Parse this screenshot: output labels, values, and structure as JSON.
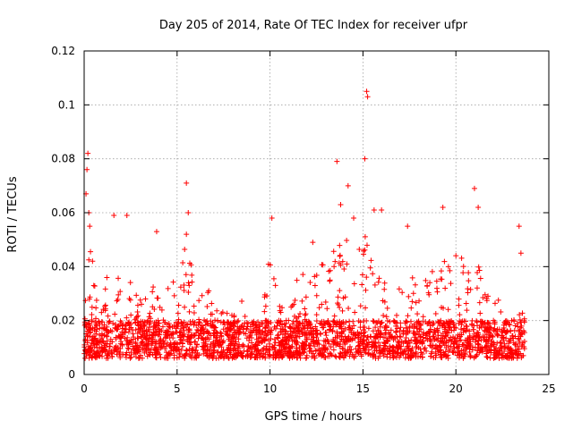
{
  "chart_data": {
    "type": "scatter",
    "title": "Day 205 of 2014, Rate Of TEC Index for receiver ufpr",
    "xlabel": "GPS time / hours",
    "ylabel": "ROTI / TECUs",
    "xlim": [
      0,
      25
    ],
    "ylim": [
      0,
      0.12
    ],
    "x_ticks": [
      0,
      5,
      10,
      15,
      20,
      25
    ],
    "x_tick_labels": [
      "0",
      "5",
      "10",
      "15",
      "20",
      "25"
    ],
    "y_ticks": [
      0,
      0.02,
      0.04,
      0.06,
      0.08,
      0.1,
      0.12
    ],
    "y_tick_labels": [
      "0",
      "0.02",
      "0.04",
      "0.06",
      "0.08",
      "0.1",
      "0.12"
    ],
    "grid": true,
    "marker": "+",
    "series": [
      {
        "name": "ROTI",
        "color": "#ff0000",
        "envelope_hours": [
          0,
          0.3,
          0.6,
          1,
          1.5,
          2,
          2.5,
          3,
          3.5,
          4,
          4.5,
          5,
          5.5,
          6,
          6.5,
          7,
          7.5,
          8,
          8.5,
          9,
          9.5,
          10,
          10.5,
          11,
          11.5,
          12,
          12.5,
          13,
          13.5,
          14,
          14.5,
          15,
          15.5,
          16,
          16.5,
          17,
          17.5,
          18,
          18.5,
          19,
          19.5,
          20,
          20.5,
          21,
          21.5,
          22,
          22.5,
          23,
          23.7
        ],
        "envelope_upper": [
          0.03,
          0.05,
          0.035,
          0.03,
          0.05,
          0.035,
          0.04,
          0.028,
          0.04,
          0.045,
          0.04,
          0.04,
          0.05,
          0.035,
          0.038,
          0.025,
          0.024,
          0.022,
          0.028,
          0.02,
          0.022,
          0.045,
          0.03,
          0.03,
          0.04,
          0.035,
          0.045,
          0.045,
          0.055,
          0.05,
          0.05,
          0.055,
          0.045,
          0.04,
          0.03,
          0.035,
          0.035,
          0.04,
          0.045,
          0.042,
          0.045,
          0.05,
          0.04,
          0.055,
          0.045,
          0.04,
          0.02,
          0.02,
          0.025
        ],
        "outliers": [
          {
            "x": 0.1,
            "y": 0.067
          },
          {
            "x": 0.15,
            "y": 0.076
          },
          {
            "x": 0.2,
            "y": 0.082
          },
          {
            "x": 0.25,
            "y": 0.06
          },
          {
            "x": 0.3,
            "y": 0.055
          },
          {
            "x": 1.6,
            "y": 0.059
          },
          {
            "x": 2.3,
            "y": 0.059
          },
          {
            "x": 3.9,
            "y": 0.053
          },
          {
            "x": 5.5,
            "y": 0.071
          },
          {
            "x": 5.6,
            "y": 0.06
          },
          {
            "x": 5.5,
            "y": 0.052
          },
          {
            "x": 10.1,
            "y": 0.058
          },
          {
            "x": 12.3,
            "y": 0.049
          },
          {
            "x": 13.6,
            "y": 0.079
          },
          {
            "x": 13.8,
            "y": 0.063
          },
          {
            "x": 14.2,
            "y": 0.07
          },
          {
            "x": 14.5,
            "y": 0.058
          },
          {
            "x": 15.1,
            "y": 0.08
          },
          {
            "x": 15.2,
            "y": 0.105
          },
          {
            "x": 15.25,
            "y": 0.103
          },
          {
            "x": 15.6,
            "y": 0.061
          },
          {
            "x": 16.0,
            "y": 0.061
          },
          {
            "x": 17.4,
            "y": 0.055
          },
          {
            "x": 19.3,
            "y": 0.062
          },
          {
            "x": 21.0,
            "y": 0.069
          },
          {
            "x": 21.2,
            "y": 0.062
          },
          {
            "x": 23.4,
            "y": 0.055
          },
          {
            "x": 23.5,
            "y": 0.045
          }
        ]
      }
    ]
  }
}
